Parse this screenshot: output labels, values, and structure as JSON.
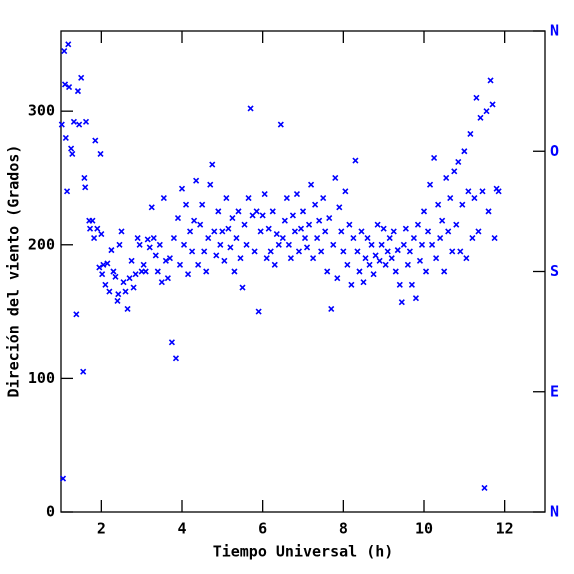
{
  "chart_data": {
    "type": "scatter",
    "x_label": "Tiempo Universal (h)",
    "y_label": "Direción del viento (Grados)",
    "color": "#0000ff",
    "xlim": [
      1,
      13
    ],
    "xticks": [
      2,
      4,
      6,
      8,
      10,
      12
    ],
    "ylim": [
      0,
      360
    ],
    "yticks": [
      0,
      100,
      200,
      300
    ],
    "y2lim": [
      0,
      360
    ],
    "y2ticks": [
      {
        "value": 0,
        "label": "N"
      },
      {
        "value": 90,
        "label": "E"
      },
      {
        "value": 180,
        "label": "S"
      },
      {
        "value": 270,
        "label": "O"
      },
      {
        "value": 360,
        "label": "N"
      }
    ],
    "x": [
      1.02,
      1.05,
      1.08,
      1.1,
      1.12,
      1.15,
      1.18,
      1.2,
      1.25,
      1.28,
      1.32,
      1.38,
      1.42,
      1.45,
      1.5,
      1.55,
      1.58,
      1.6,
      1.62,
      1.7,
      1.72,
      1.78,
      1.82,
      1.85,
      1.9,
      1.95,
      1.98,
      2.0,
      2.02,
      2.05,
      2.1,
      2.15,
      2.2,
      2.25,
      2.3,
      2.35,
      2.4,
      2.42,
      2.45,
      2.5,
      2.55,
      2.6,
      2.65,
      2.7,
      2.75,
      2.8,
      2.85,
      2.9,
      2.95,
      3.0,
      3.05,
      3.1,
      3.15,
      3.2,
      3.25,
      3.3,
      3.35,
      3.4,
      3.45,
      3.5,
      3.55,
      3.6,
      3.65,
      3.7,
      3.75,
      3.8,
      3.85,
      3.9,
      3.95,
      4.0,
      4.05,
      4.1,
      4.15,
      4.2,
      4.25,
      4.3,
      4.35,
      4.4,
      4.45,
      4.5,
      4.55,
      4.6,
      4.65,
      4.7,
      4.75,
      4.8,
      4.85,
      4.9,
      4.95,
      5.0,
      5.05,
      5.1,
      5.15,
      5.2,
      5.25,
      5.3,
      5.35,
      5.4,
      5.45,
      5.5,
      5.55,
      5.6,
      5.65,
      5.7,
      5.75,
      5.8,
      5.85,
      5.9,
      5.95,
      6.0,
      6.05,
      6.1,
      6.15,
      6.2,
      6.25,
      6.3,
      6.35,
      6.4,
      6.45,
      6.5,
      6.55,
      6.6,
      6.65,
      6.7,
      6.75,
      6.8,
      6.85,
      6.9,
      6.95,
      7.0,
      7.05,
      7.1,
      7.15,
      7.2,
      7.25,
      7.3,
      7.35,
      7.4,
      7.45,
      7.5,
      7.55,
      7.6,
      7.65,
      7.7,
      7.75,
      7.8,
      7.85,
      7.9,
      7.95,
      8.0,
      8.05,
      8.1,
      8.15,
      8.2,
      8.25,
      8.3,
      8.35,
      8.4,
      8.45,
      8.5,
      8.55,
      8.6,
      8.65,
      8.7,
      8.75,
      8.8,
      8.85,
      8.9,
      8.95,
      9.0,
      9.05,
      9.1,
      9.15,
      9.2,
      9.25,
      9.3,
      9.35,
      9.4,
      9.45,
      9.5,
      9.55,
      9.6,
      9.65,
      9.7,
      9.75,
      9.8,
      9.85,
      9.9,
      9.95,
      10.0,
      10.05,
      10.1,
      10.15,
      10.2,
      10.25,
      10.3,
      10.35,
      10.4,
      10.45,
      10.5,
      10.55,
      10.6,
      10.65,
      10.7,
      10.75,
      10.8,
      10.85,
      10.9,
      10.95,
      11.0,
      11.05,
      11.1,
      11.15,
      11.2,
      11.25,
      11.3,
      11.35,
      11.4,
      11.45,
      11.5,
      11.55,
      11.6,
      11.65,
      11.7,
      11.75,
      11.8,
      11.85
    ],
    "values": [
      290,
      25,
      345,
      320,
      280,
      240,
      350,
      318,
      272,
      268,
      292,
      148,
      315,
      290,
      325,
      105,
      250,
      243,
      292,
      218,
      212,
      218,
      205,
      278,
      212,
      183,
      268,
      208,
      178,
      185,
      170,
      186,
      165,
      196,
      180,
      176,
      158,
      163,
      200,
      210,
      172,
      165,
      152,
      175,
      188,
      168,
      178,
      205,
      200,
      180,
      185,
      180,
      204,
      198,
      228,
      205,
      192,
      180,
      200,
      172,
      235,
      188,
      175,
      190,
      127,
      205,
      115,
      220,
      185,
      242,
      200,
      230,
      178,
      210,
      195,
      218,
      248,
      185,
      215,
      230,
      195,
      180,
      205,
      245,
      260,
      210,
      192,
      225,
      200,
      210,
      188,
      235,
      212,
      198,
      220,
      180,
      205,
      225,
      190,
      168,
      215,
      200,
      235,
      302,
      222,
      195,
      225,
      150,
      210,
      222,
      238,
      190,
      212,
      195,
      225,
      185,
      208,
      200,
      290,
      205,
      218,
      235,
      200,
      190,
      222,
      210,
      238,
      195,
      212,
      225,
      205,
      198,
      215,
      245,
      190,
      230,
      205,
      218,
      195,
      235,
      210,
      180,
      220,
      152,
      200,
      250,
      175,
      228,
      210,
      195,
      240,
      185,
      215,
      170,
      205,
      263,
      195,
      180,
      210,
      172,
      190,
      205,
      185,
      200,
      178,
      192,
      215,
      188,
      200,
      212,
      185,
      195,
      205,
      190,
      210,
      180,
      196,
      170,
      157,
      200,
      212,
      185,
      195,
      170,
      205,
      160,
      215,
      188,
      200,
      225,
      180,
      210,
      245,
      200,
      265,
      190,
      230,
      205,
      218,
      180,
      250,
      210,
      235,
      195,
      255,
      215,
      262,
      195,
      230,
      270,
      190,
      240,
      283,
      205,
      235,
      310,
      210,
      295,
      240,
      18,
      300,
      225,
      323,
      305,
      205,
      242,
      240
    ]
  }
}
